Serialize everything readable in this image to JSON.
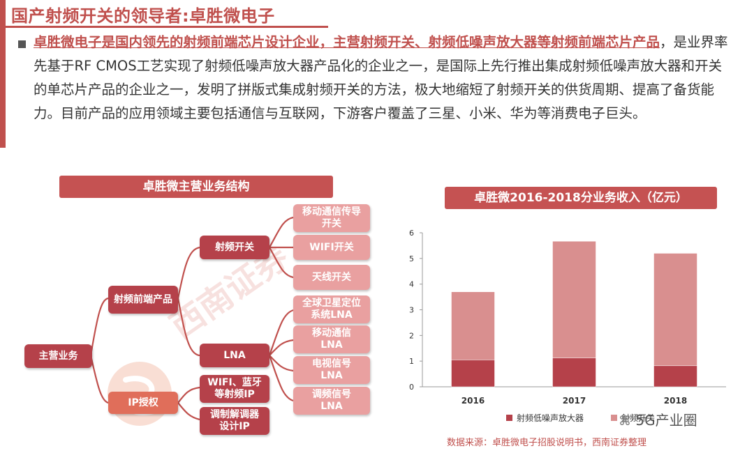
{
  "title": "国产射频开关的领导者:卓胜微电子",
  "paragraph": {
    "highlight": "卓胜微电子是国内领先的射频前端芯片设计企业，主营射频开关、射频低噪声放大器等射频前端芯片产品",
    "rest": "，是业界率先基于RF CMOS工艺实现了射频低噪声放大器产品化的企业之一，是国际上先行推出集成射频低噪声放大器和开关的单芯片产品的企业之一，发明了拼版式集成射频开关的方法，极大地缩短了射频开关的供货周期、提高了备货能力。目前产品的应用领域主要包括通信与互联网，下游客户覆盖了三星、小米、华为等消费电子巨头。"
  },
  "structure": {
    "title": "卓胜微主营业务结构",
    "root": "主营业务",
    "level1": [
      "射频前端产品",
      "IP授权"
    ],
    "level2": [
      "射频开关",
      "LNA",
      "WIFI、蓝牙等射频IP",
      "调制解调器设计IP"
    ],
    "switch_items": [
      "移动通信传导开关",
      "WIFI开关",
      "天线开关"
    ],
    "lna_items": [
      "全球卫星定位系统LNA",
      "移动通信LNA",
      "电视信号LNA",
      "调频信号LNA"
    ],
    "watermark": "西南证券"
  },
  "chart_data": {
    "type": "bar",
    "stacked": true,
    "title": "卓胜微2016-2018分业务收入（亿元）",
    "categories": [
      "2016",
      "2017",
      "2018"
    ],
    "series": [
      {
        "name": "射频低噪声放大器",
        "values": [
          1.05,
          1.12,
          0.82
        ],
        "color": "#b5414a"
      },
      {
        "name": "射频开关",
        "values": [
          2.65,
          4.55,
          4.38
        ],
        "color": "#d98f8f"
      }
    ],
    "ylim": [
      0,
      6
    ],
    "yticks": [
      0,
      1,
      2,
      3,
      4,
      5,
      6
    ],
    "grid": false,
    "legend": "bottom"
  },
  "source": "数据来源：卓胜微电子招股说明书，西南证券整理",
  "wechat": "5G产业圈"
}
